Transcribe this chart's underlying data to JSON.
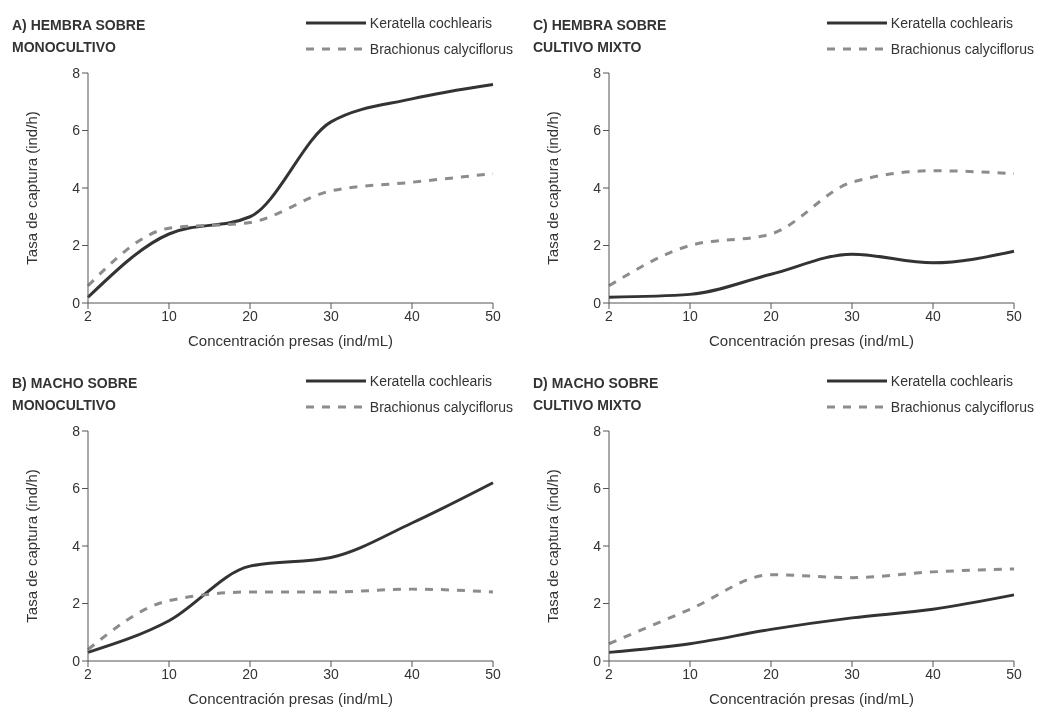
{
  "chart_data": [
    {
      "type": "line",
      "title": "A) HEMBRA SOBRE\nMONOCULTIVO",
      "xlabel": "Concentración presas (ind/mL)",
      "ylabel": "Tasa de captura (ind/h)",
      "categories": [
        "2",
        "10",
        "20",
        "30",
        "40",
        "50"
      ],
      "ylim": [
        0,
        8
      ],
      "yticks": [
        0,
        2,
        4,
        6,
        8
      ],
      "grid": false,
      "legend": "top right",
      "marker": "none",
      "series": [
        {
          "name": "Keratella cochlearis",
          "color": "#333333",
          "line_style": "solid",
          "values": [
            0.2,
            2.4,
            3.0,
            6.3,
            7.1,
            7.6
          ]
        },
        {
          "name": "Brachionus calyciflorus",
          "color": "#8c8c8c",
          "line_style": "dashed",
          "values": [
            0.6,
            2.6,
            2.8,
            3.9,
            4.2,
            4.5
          ]
        }
      ]
    },
    {
      "type": "line",
      "title": "C) HEMBRA SOBRE\nCULTIVO MIXTO",
      "xlabel": "Concentración presas (ind/mL)",
      "ylabel": "Tasa de captura (ind/h)",
      "categories": [
        "2",
        "10",
        "20",
        "30",
        "40",
        "50"
      ],
      "ylim": [
        0,
        8
      ],
      "yticks": [
        0,
        2,
        4,
        6,
        8
      ],
      "grid": false,
      "legend": "top right",
      "marker": "none",
      "series": [
        {
          "name": "Keratella cochlearis",
          "color": "#333333",
          "line_style": "solid",
          "values": [
            0.2,
            0.3,
            1.0,
            1.7,
            1.4,
            1.8
          ]
        },
        {
          "name": "Brachionus calyciflorus",
          "color": "#8c8c8c",
          "line_style": "dashed",
          "values": [
            0.6,
            2.0,
            2.4,
            4.2,
            4.6,
            4.5
          ]
        }
      ]
    },
    {
      "type": "line",
      "title": "B) MACHO SOBRE\nMONOCULTIVO",
      "xlabel": "Concentración presas (ind/mL)",
      "ylabel": "Tasa de captura (ind/h)",
      "categories": [
        "2",
        "10",
        "20",
        "30",
        "40",
        "50"
      ],
      "ylim": [
        0,
        8
      ],
      "yticks": [
        0,
        2,
        4,
        6,
        8
      ],
      "grid": false,
      "legend": "top right",
      "marker": "none",
      "series": [
        {
          "name": "Keratella cochlearis",
          "color": "#333333",
          "line_style": "solid",
          "values": [
            0.3,
            1.4,
            3.3,
            3.6,
            4.8,
            6.2
          ]
        },
        {
          "name": "Brachionus calyciflorus",
          "color": "#8c8c8c",
          "line_style": "dashed",
          "values": [
            0.4,
            2.1,
            2.4,
            2.4,
            2.5,
            2.4
          ]
        }
      ]
    },
    {
      "type": "line",
      "title": "D) MACHO SOBRE\nCULTIVO MIXTO",
      "xlabel": "Concentración presas (ind/mL)",
      "ylabel": "Tasa de captura (ind/h)",
      "categories": [
        "2",
        "10",
        "20",
        "30",
        "40",
        "50"
      ],
      "ylim": [
        0,
        8
      ],
      "yticks": [
        0,
        2,
        4,
        6,
        8
      ],
      "grid": false,
      "legend": "top right",
      "marker": "none",
      "series": [
        {
          "name": "Keratella cochlearis",
          "color": "#333333",
          "line_style": "solid",
          "values": [
            0.3,
            0.6,
            1.1,
            1.5,
            1.8,
            2.3
          ]
        },
        {
          "name": "Brachionus calyciflorus",
          "color": "#8c8c8c",
          "line_style": "dashed",
          "values": [
            0.6,
            1.8,
            3.0,
            2.9,
            3.1,
            3.2
          ]
        }
      ]
    }
  ]
}
